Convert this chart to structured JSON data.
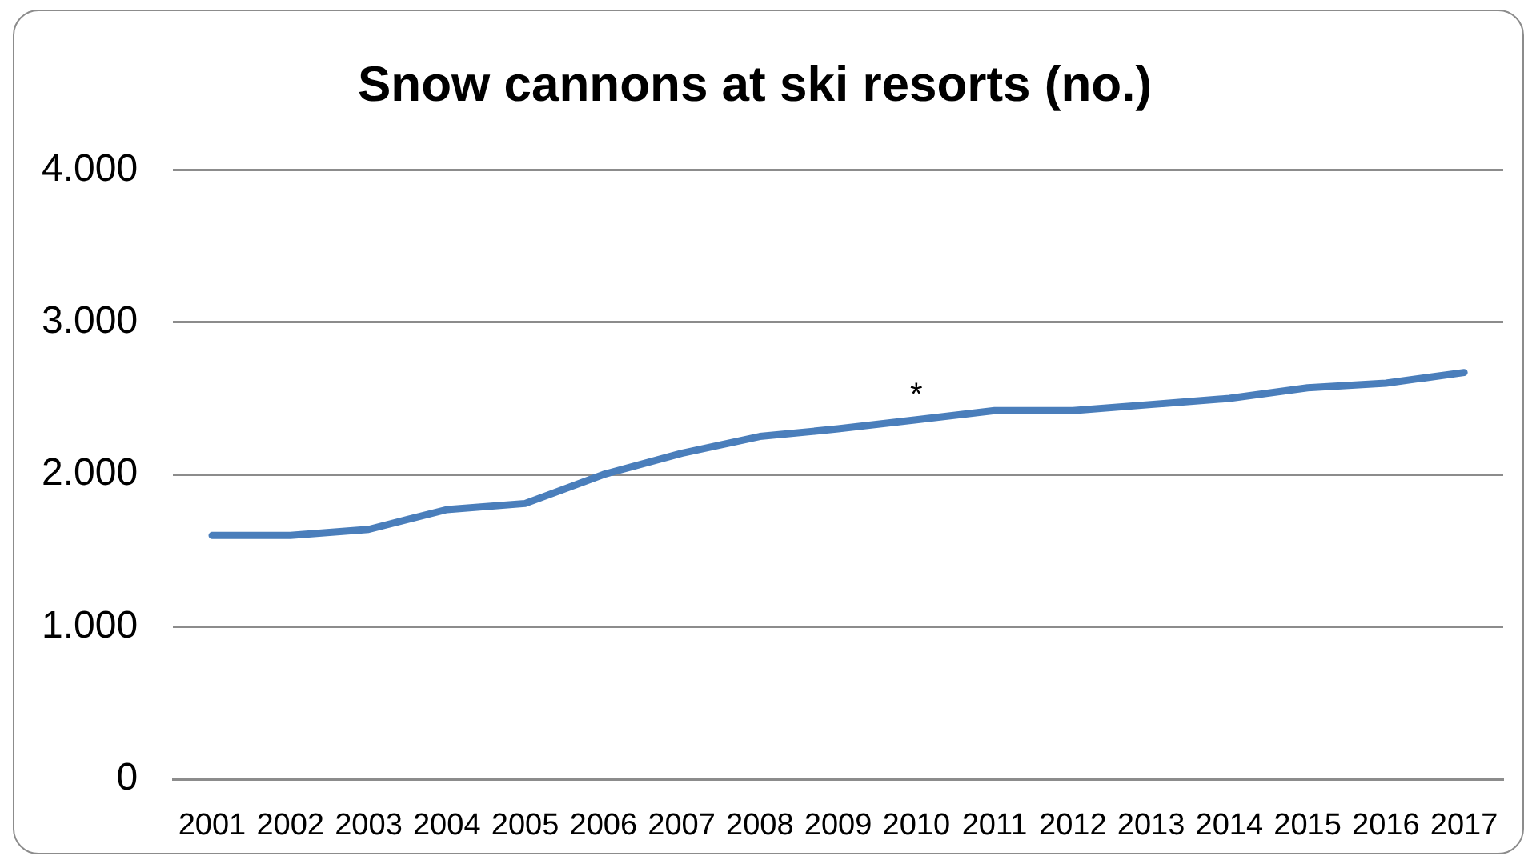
{
  "chart_data": {
    "type": "line",
    "title": "Snow cannons at ski resorts (no.)",
    "categories": [
      "2001",
      "2002",
      "2003",
      "2004",
      "2005",
      "2006",
      "2007",
      "2008",
      "2009",
      "2010",
      "2011",
      "2012",
      "2013",
      "2014",
      "2015",
      "2016",
      "2017"
    ],
    "series": [
      {
        "color": "#4a7ebb",
        "values": [
          1600,
          1600,
          1640,
          1770,
          1810,
          2000,
          2140,
          2250,
          2300,
          2360,
          2420,
          2420,
          2460,
          2500,
          2570,
          2600,
          2670
        ]
      }
    ],
    "ylim": [
      0,
      4000
    ],
    "yticks": [
      0,
      {
        "value": 1000,
        "label": "1.000"
      },
      {
        "value": 2000,
        "label": "2.000"
      },
      {
        "value": 3000,
        "label": "3.000"
      },
      {
        "value": 4000,
        "label": "4.000"
      }
    ],
    "grid": "y",
    "annotations": [
      {
        "text": "*",
        "x": "2010",
        "y": 2360
      }
    ]
  }
}
